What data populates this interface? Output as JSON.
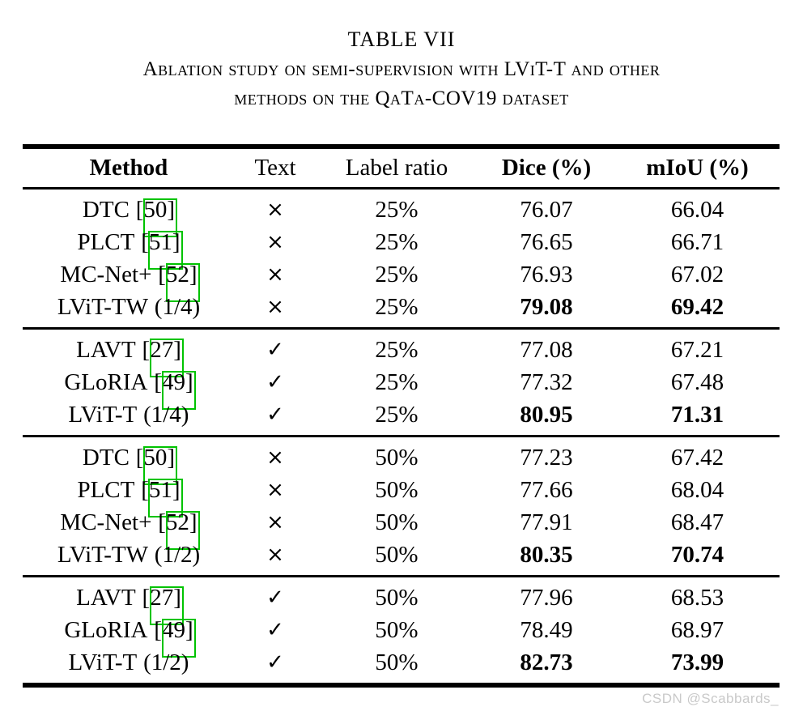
{
  "title": "TABLE VII",
  "caption": {
    "line1": "Ablation study on semi-supervision with LViT-T and other",
    "line2": "methods on the QaTa-COV19 dataset"
  },
  "colors": {
    "citation_box": "#00c300",
    "text": "#000000",
    "watermark": "#c9c9c9"
  },
  "symbols": {
    "has_text": "✓",
    "no_text": "×"
  },
  "watermark": "CSDN @Scabbards_",
  "table": {
    "headers": [
      "Method",
      "Text",
      "Label ratio",
      "Dice (%)",
      "mIoU (%)"
    ],
    "groups": [
      {
        "rows": [
          {
            "name": "DTC",
            "cite": "[50]",
            "mark": "×",
            "ratio": "25%",
            "dice": "76.07",
            "miou": "66.04"
          },
          {
            "name": "PLCT",
            "cite": "[51]",
            "mark": "×",
            "ratio": "25%",
            "dice": "76.65",
            "miou": "66.71"
          },
          {
            "name": "MC-Net+",
            "cite": "[52]",
            "mark": "×",
            "ratio": "25%",
            "dice": "76.93",
            "miou": "67.02"
          },
          {
            "name": "LViT-TW",
            "cite": "(1/4)",
            "mark": "×",
            "ratio": "25%",
            "dice": "79.08",
            "miou": "69.42"
          }
        ]
      },
      {
        "rows": [
          {
            "name": "LAVT",
            "cite": "[27]",
            "mark": "✓",
            "ratio": "25%",
            "dice": "77.08",
            "miou": "67.21"
          },
          {
            "name": "GLoRIA",
            "cite": "[49]",
            "mark": "✓",
            "ratio": "25%",
            "dice": "77.32",
            "miou": "67.48"
          },
          {
            "name": "LViT-T",
            "cite": "(1/4)",
            "mark": "✓",
            "ratio": "25%",
            "dice": "80.95",
            "miou": "71.31"
          }
        ]
      },
      {
        "rows": [
          {
            "name": "DTC",
            "cite": "[50]",
            "mark": "×",
            "ratio": "50%",
            "dice": "77.23",
            "miou": "67.42"
          },
          {
            "name": "PLCT",
            "cite": "[51]",
            "mark": "×",
            "ratio": "50%",
            "dice": "77.66",
            "miou": "68.04"
          },
          {
            "name": "MC-Net+",
            "cite": "[52]",
            "mark": "×",
            "ratio": "50%",
            "dice": "77.91",
            "miou": "68.47"
          },
          {
            "name": "LViT-TW",
            "cite": "(1/2)",
            "mark": "×",
            "ratio": "50%",
            "dice": "80.35",
            "miou": "70.74"
          }
        ]
      },
      {
        "rows": [
          {
            "name": "LAVT",
            "cite": "[27]",
            "mark": "✓",
            "ratio": "50%",
            "dice": "77.96",
            "miou": "68.53"
          },
          {
            "name": "GLoRIA",
            "cite": "[49]",
            "mark": "✓",
            "ratio": "50%",
            "dice": "78.49",
            "miou": "68.97"
          },
          {
            "name": "LViT-T",
            "cite": "(1/2)",
            "mark": "✓",
            "ratio": "50%",
            "dice": "82.73",
            "miou": "73.99"
          }
        ]
      }
    ]
  }
}
